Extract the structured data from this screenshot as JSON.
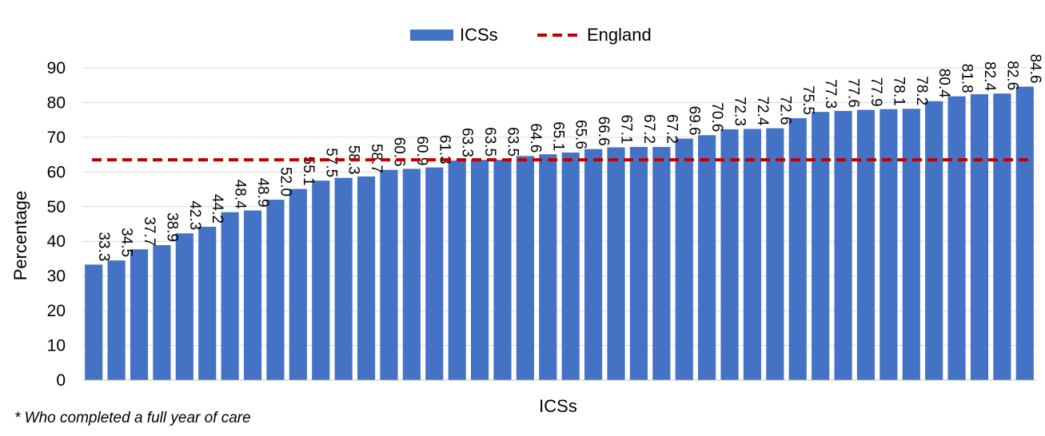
{
  "chart_data": {
    "type": "bar",
    "title": "",
    "xlabel": "ICSs",
    "ylabel": "Percentage",
    "ylim": [
      0,
      90
    ],
    "yticks": [
      0,
      10,
      20,
      30,
      40,
      50,
      60,
      70,
      80,
      90
    ],
    "grid": true,
    "legend_position": "top-center",
    "series": [
      {
        "name": "ICSs",
        "type": "bar",
        "color": "#4472C4",
        "values": [
          33.3,
          34.5,
          37.7,
          38.9,
          42.3,
          44.2,
          48.4,
          48.9,
          52.0,
          55.1,
          57.5,
          58.3,
          58.7,
          60.6,
          60.9,
          61.3,
          63.3,
          63.5,
          63.5,
          64.6,
          65.1,
          65.6,
          66.6,
          67.1,
          67.2,
          67.2,
          69.6,
          70.6,
          72.3,
          72.4,
          72.6,
          75.5,
          77.3,
          77.6,
          77.9,
          78.1,
          78.2,
          80.4,
          81.8,
          82.4,
          82.6,
          84.6
        ]
      },
      {
        "name": "England",
        "type": "reference-line",
        "color": "#C00000",
        "value": 63.5
      }
    ],
    "footnote": "* Who completed a full year of care"
  }
}
